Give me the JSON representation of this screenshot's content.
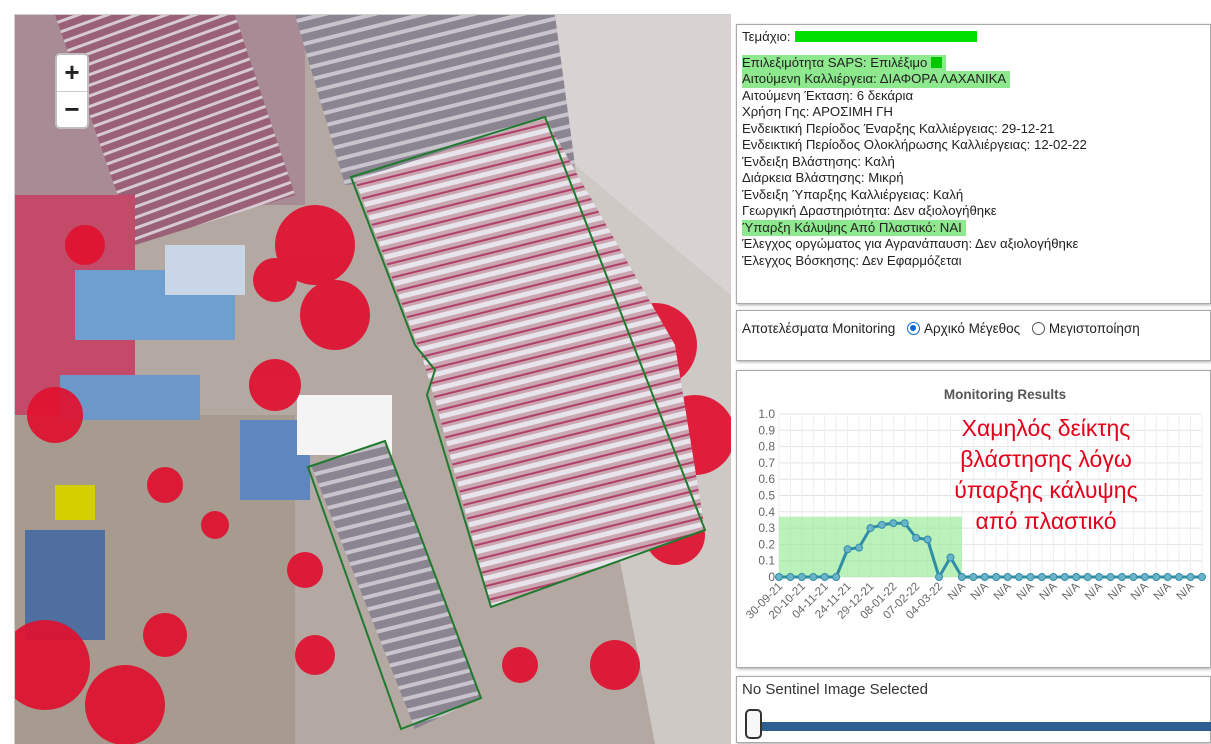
{
  "map": {
    "zoom_in": "+",
    "zoom_out": "−"
  },
  "info": {
    "parcel_label": "Τεμάχιο:",
    "rows": [
      {
        "text": "Επιλεξιμότητα SAPS: Επιλέξιμο",
        "highlight": true,
        "marker": true
      },
      {
        "text": "Αιτούμενη Καλλιέργεια: ΔΙΑΦΟΡΑ ΛΑΧΑΝΙΚΑ",
        "highlight": true
      },
      {
        "text": "Αιτούμενη Έκταση: 6 δεκάρια"
      },
      {
        "text": "Χρήση Γης: ΑΡΟΣΙΜΗ ΓΗ"
      },
      {
        "text": "Ενδεικτική Περίοδος Έναρξης Καλλιέργειας: 29-12-21"
      },
      {
        "text": "Ενδεικτική Περίοδος Ολοκλήρωσης Καλλιέργειας: 12-02-22"
      },
      {
        "text": "Ένδειξη Βλάστησης: Καλή"
      },
      {
        "text": "Διάρκεια Βλάστησης: Μικρή"
      },
      {
        "text": "Ένδειξη Ύπαρξης Καλλιέργειας: Καλή"
      },
      {
        "text": "Γεωργική Δραστηριότητα: Δεν αξιολογήθηκε"
      },
      {
        "text": "Ύπαρξη Κάλυψης Από Πλαστικό: ΝΑΙ",
        "highlight": true
      },
      {
        "text": "Έλεγχος οργώματος για Αγρανάπαυση: Δεν αξιολογήθηκε"
      },
      {
        "text": "Έλεγχος Βόσκησης: Δεν Εφαρμόζεται"
      }
    ]
  },
  "monitor": {
    "label": "Αποτελέσματα Monitoring",
    "option1": "Αρχικό Μέγεθος",
    "option2": "Μεγιστοποίηση",
    "selected": "option1"
  },
  "note": {
    "lines": [
      "Χαμηλός δείκτης",
      "βλάστησης λόγω",
      "ύπαρξης κάλυψης",
      "από πλαστικό"
    ]
  },
  "sentinel": {
    "title": "No Sentinel Image Selected"
  },
  "colors": {
    "line": "#2f8ea6",
    "highlight": "#8ee88e",
    "note": "#e3001b",
    "outline": "#1f7a2e"
  },
  "chart_data": {
    "type": "line",
    "title": "Monitoring Results",
    "ylim": [
      0,
      1.0
    ],
    "yticks": [
      "1.0",
      "0.9",
      "0.8",
      "0.7",
      "0.6",
      "0.5",
      "0.4",
      "0.3",
      "0.2",
      "0.1",
      "0"
    ],
    "xticks": [
      "30-09-21",
      "20-10-21",
      "04-11-21",
      "24-11-21",
      "29-12-21",
      "08-01-22",
      "07-02-22",
      "04-03-22",
      "N/A",
      "N/A",
      "N/A",
      "N/A",
      "N/A",
      "N/A",
      "N/A",
      "N/A",
      "N/A",
      "N/A",
      "N/A"
    ],
    "values": [
      0,
      0,
      0,
      0,
      0,
      0,
      0.17,
      0.18,
      0.3,
      0.32,
      0.33,
      0.33,
      0.24,
      0.23,
      0,
      0.12,
      0,
      0,
      0,
      0,
      0,
      0,
      0,
      0,
      0,
      0,
      0,
      0,
      0,
      0,
      0,
      0,
      0,
      0,
      0,
      0,
      0,
      0
    ],
    "highlight_ylim": [
      0,
      0.37
    ],
    "grid": true
  }
}
